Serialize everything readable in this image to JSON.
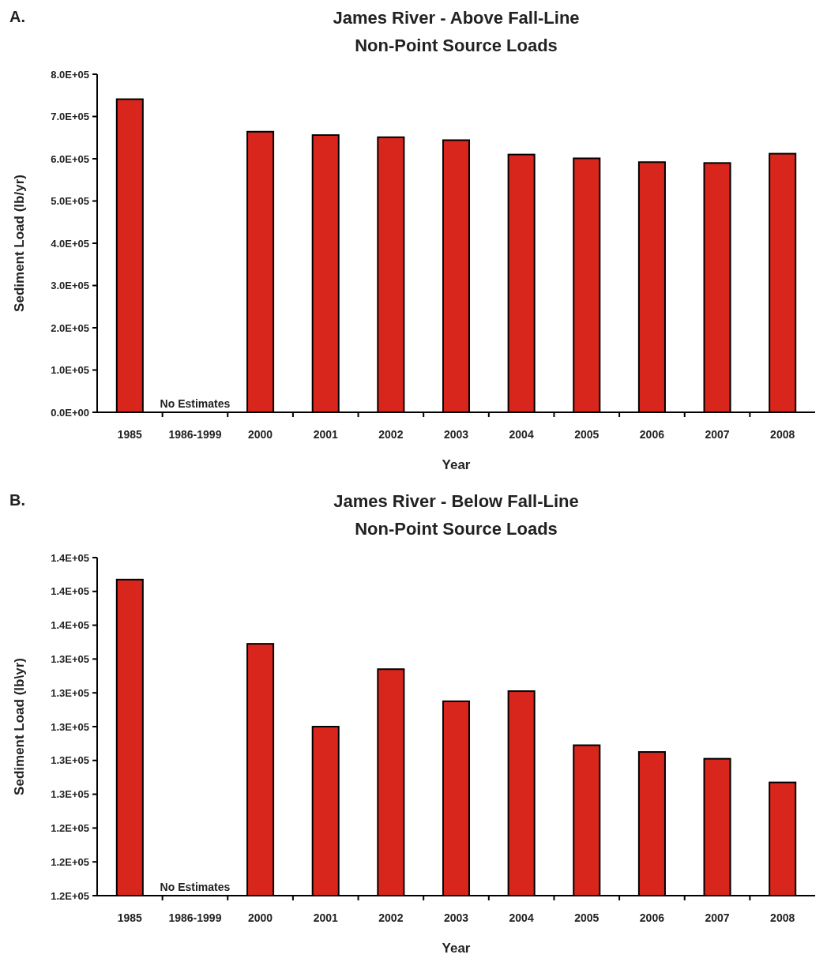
{
  "chart_data": [
    {
      "type": "bar",
      "title": "James River - Above Fall-Line\nNon-Point Source Loads",
      "xlabel": "Year",
      "ylabel": "Sediment Load (lb/yr)",
      "annotations": [
        "A.",
        "No Estimates"
      ],
      "categories": [
        "1985",
        "1986-1999",
        "2000",
        "2001",
        "2002",
        "2003",
        "2004",
        "2005",
        "2006",
        "2007",
        "2008"
      ],
      "values": [
        741000,
        null,
        664000,
        656000,
        651000,
        644000,
        610000,
        601000,
        592000,
        590000,
        612000
      ],
      "color": "#d9261c",
      "ylim": [
        0,
        800000
      ],
      "yticks": [
        {
          "value": 0,
          "label": "0.0E+00"
        },
        {
          "value": 100000,
          "label": "1.0E+05"
        },
        {
          "value": 200000,
          "label": "2.0E+05"
        },
        {
          "value": 300000,
          "label": "3.0E+05"
        },
        {
          "value": 400000,
          "label": "4.0E+05"
        },
        {
          "value": 500000,
          "label": "5.0E+05"
        },
        {
          "value": 600000,
          "label": "6.0E+05"
        },
        {
          "value": 700000,
          "label": "7.0E+05"
        },
        {
          "value": 800000,
          "label": "8.0E+05"
        }
      ]
    },
    {
      "type": "bar",
      "title": "James River - Below Fall-Line\nNon-Point Source Loads",
      "xlabel": "Year",
      "ylabel": "Sediment Load (lb\\yr)",
      "annotations": [
        "B.",
        "No Estimates"
      ],
      "categories": [
        "1985",
        "1986-1999",
        "2000",
        "2001",
        "2002",
        "2003",
        "2004",
        "2005",
        "2006",
        "2007",
        "2008"
      ],
      "values": [
        138700,
        null,
        134900,
        130000,
        133400,
        131500,
        132100,
        128900,
        128500,
        128100,
        126700
      ],
      "color": "#d9261c",
      "ylim": [
        120000,
        140000
      ],
      "yticks": [
        {
          "value": 120000,
          "label": "1.2E+05"
        },
        {
          "value": 122000,
          "label": "1.2E+05"
        },
        {
          "value": 124000,
          "label": "1.2E+05"
        },
        {
          "value": 126000,
          "label": "1.3E+05"
        },
        {
          "value": 128000,
          "label": "1.3E+05"
        },
        {
          "value": 130000,
          "label": "1.3E+05"
        },
        {
          "value": 132000,
          "label": "1.3E+05"
        },
        {
          "value": 134000,
          "label": "1.3E+05"
        },
        {
          "value": 136000,
          "label": "1.4E+05"
        },
        {
          "value": 138000,
          "label": "1.4E+05"
        },
        {
          "value": 140000,
          "label": "1.4E+05"
        }
      ]
    }
  ]
}
